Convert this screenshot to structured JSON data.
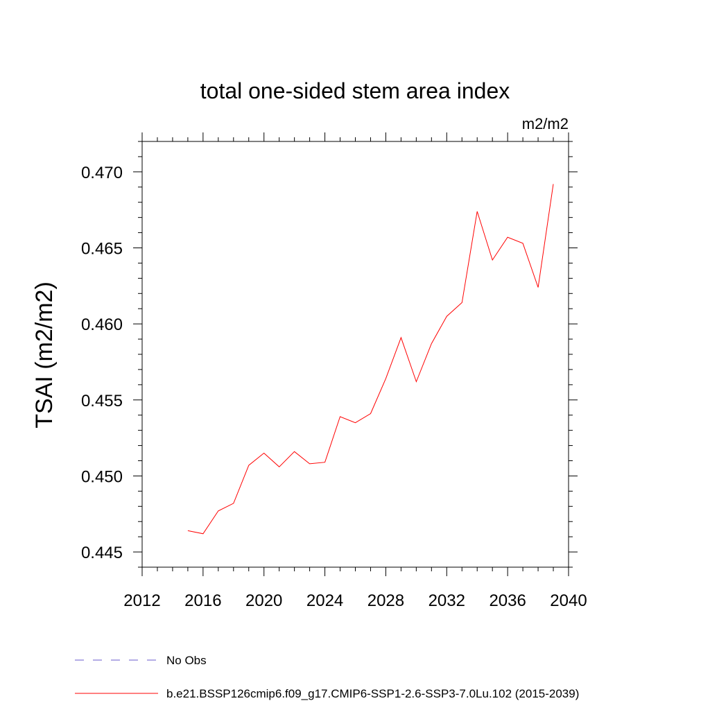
{
  "chart_data": {
    "type": "line",
    "title": "total one-sided stem area index",
    "units": "m2/m2",
    "ylabel": "TSAI  (m2/m2)",
    "xlabel": "",
    "xlim": [
      2012,
      2040
    ],
    "ylim": [
      0.444,
      0.472
    ],
    "x_ticks": [
      2012,
      2016,
      2020,
      2024,
      2028,
      2032,
      2036,
      2040
    ],
    "x_tick_labels": [
      "2012",
      "2016",
      "2020",
      "2024",
      "2028",
      "2032",
      "2036",
      "2040"
    ],
    "y_ticks": [
      0.445,
      0.45,
      0.455,
      0.46,
      0.465,
      0.47
    ],
    "y_tick_labels": [
      "0.445",
      "0.450",
      "0.455",
      "0.460",
      "0.465",
      "0.470"
    ],
    "grid": false,
    "legend_position": "bottom",
    "series": [
      {
        "name": "b.e21.BSSP126cmip6.f09_g17.CMIP6-SSP1-2.6-SSP3-7.0Lu.102 (2015-2039)",
        "color": "#ff0000",
        "style": "solid",
        "x": [
          2015,
          2016,
          2017,
          2018,
          2019,
          2020,
          2021,
          2022,
          2023,
          2024,
          2025,
          2026,
          2027,
          2028,
          2029,
          2030,
          2031,
          2032,
          2033,
          2034,
          2035,
          2036,
          2037,
          2038,
          2039
        ],
        "y": [
          0.4464,
          0.4462,
          0.4477,
          0.4482,
          0.4507,
          0.4515,
          0.4506,
          0.4516,
          0.4508,
          0.4509,
          0.4539,
          0.4535,
          0.4541,
          0.4564,
          0.4591,
          0.4562,
          0.4587,
          0.4605,
          0.4614,
          0.4674,
          0.4642,
          0.4657,
          0.4653,
          0.4624,
          0.4692
        ]
      },
      {
        "name": "No Obs",
        "color": "#6a5acd",
        "style": "dashed",
        "x": [],
        "y": []
      }
    ]
  }
}
